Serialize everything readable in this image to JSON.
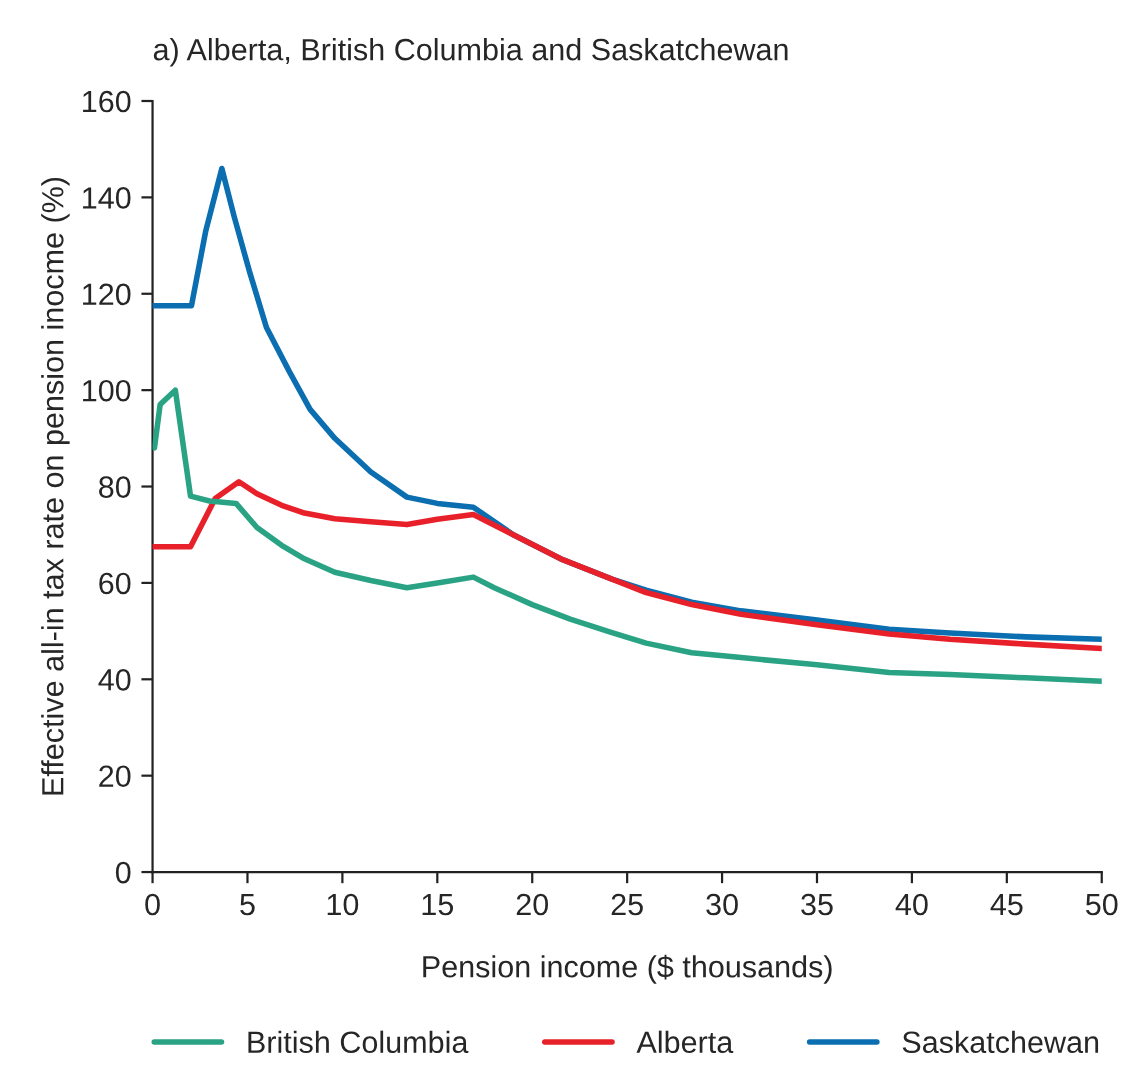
{
  "chart_data": {
    "type": "line",
    "title": "a) Alberta, British Columbia and Saskatchewan",
    "xlabel": "Pension income ($ thousands)",
    "ylabel": "Effective all-in tax rate on pension inocme (%)",
    "xlim": [
      0,
      50
    ],
    "ylim": [
      0,
      160
    ],
    "xticks": [
      0,
      5,
      10,
      15,
      20,
      25,
      30,
      35,
      40,
      45,
      50
    ],
    "yticks": [
      0,
      20,
      40,
      60,
      80,
      100,
      120,
      140,
      160
    ],
    "grid": false,
    "legend": "bottom",
    "marker": "none",
    "line_style": "solid",
    "series": [
      {
        "name": "British Columbia",
        "color": "#2aa384",
        "x": [
          0.1,
          0.4,
          1.2,
          2.0,
          3.0,
          4.4,
          5.5,
          6.8,
          8.0,
          9.6,
          11.5,
          13.4,
          15.0,
          16.9,
          18.0,
          20.0,
          22.0,
          24.2,
          26.0,
          28.4,
          31.0,
          35.0,
          38.8,
          42.0,
          46.0,
          50.0
        ],
        "values": [
          88,
          97,
          100,
          78,
          77,
          76.5,
          71.5,
          67.8,
          65,
          62.2,
          60.5,
          59,
          60,
          61.2,
          59,
          55.5,
          52.5,
          49.7,
          47.5,
          45.5,
          44.5,
          43,
          41.4,
          41,
          40.3,
          39.6
        ]
      },
      {
        "name": "Alberta",
        "color": "#e8202a",
        "x": [
          0,
          2.0,
          3.3,
          4.55,
          5.5,
          6.8,
          8.0,
          9.6,
          11.5,
          13.4,
          15.0,
          16.9,
          19.0,
          21.5,
          24.2,
          26.0,
          28.4,
          31.0,
          35.0,
          38.8,
          42.0,
          46.0,
          50.0
        ],
        "values": [
          67.5,
          67.5,
          77.5,
          81,
          78.5,
          76.1,
          74.5,
          73.3,
          72.7,
          72.1,
          73.2,
          74.2,
          70,
          65,
          60.8,
          58,
          55.5,
          53.5,
          51.3,
          49.4,
          48.3,
          47.3,
          46.4
        ]
      },
      {
        "name": "Saskatchewan",
        "color": "#0a6eb0",
        "x": [
          0,
          2.05,
          2.8,
          3.65,
          4.3,
          5.1,
          6.0,
          7.2,
          8.3,
          9.6,
          11.5,
          13.4,
          15.0,
          16.9,
          19.0,
          21.5,
          24.2,
          26.0,
          28.4,
          31.0,
          35.0,
          38.8,
          42.0,
          46.0,
          50.0
        ],
        "values": [
          117.5,
          117.5,
          133,
          146,
          136,
          124.7,
          113,
          103.9,
          96,
          90,
          83,
          77.8,
          76.5,
          75.7,
          70,
          65,
          60.8,
          58.5,
          56,
          54.2,
          52.3,
          50.4,
          49.6,
          48.8,
          48.3
        ]
      }
    ]
  }
}
